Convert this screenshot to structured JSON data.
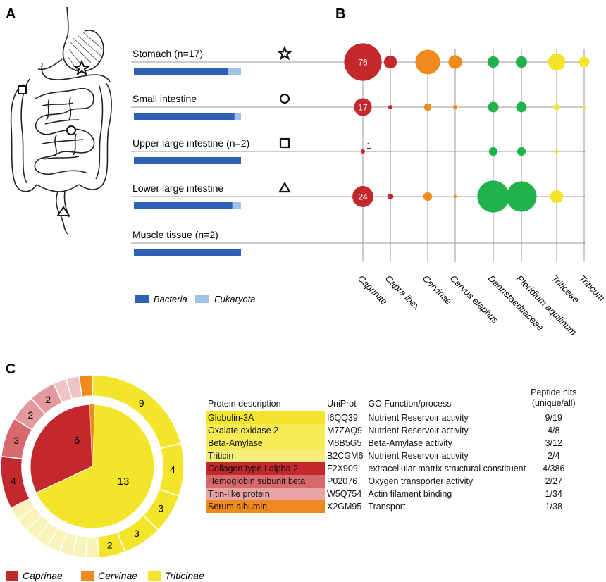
{
  "panels": {
    "a": "A",
    "b": "B",
    "c": "C"
  },
  "panel_a": {
    "samples": [
      {
        "label": "Stomach (n=17)",
        "symbol": "star-icon",
        "bacteria": 0.88,
        "eukaryota": 0.12
      },
      {
        "label": "Small intestine",
        "symbol": "circle-icon",
        "bacteria": 0.94,
        "eukaryota": 0.06
      },
      {
        "label": "Upper large intestine (n=2)",
        "symbol": "square-icon",
        "bacteria": 1.0,
        "eukaryota": 0.0
      },
      {
        "label": "Lower large intestine",
        "symbol": "triangle-icon",
        "bacteria": 0.92,
        "eukaryota": 0.08
      },
      {
        "label": "Muscle tissue (n=2)",
        "symbol": "",
        "bacteria": 1.0,
        "eukaryota": 0.0
      }
    ],
    "legend": [
      {
        "label": "Bacteria",
        "color": "#2f60b8"
      },
      {
        "label": "Eukaryota",
        "color": "#9dc3e6"
      }
    ]
  },
  "chart_data": [
    {
      "type": "scatter",
      "panel": "B",
      "categories": [
        "Caprinae",
        "Capra ibex",
        "Cervinae",
        "Cervus elaphus",
        "Dennstaedtiaceae",
        "Pteridium aquilinum",
        "Triticeae",
        "Triticum"
      ],
      "colors": [
        "#c3282c",
        "#c3282c",
        "#ef8a1e",
        "#ef8a1e",
        "#22b24b",
        "#22b24b",
        "#f2e52a",
        "#f2e52a"
      ],
      "rows": [
        "Stomach (n=17)",
        "Small intestine",
        "Upper large intestine (n=2)",
        "Lower large intestine",
        "Muscle tissue (n=2)"
      ],
      "values": [
        [
          76,
          9,
          33,
          10,
          7,
          7,
          16,
          6
        ],
        [
          17,
          1,
          3,
          1,
          6,
          6,
          2,
          0.5
        ],
        [
          1,
          0,
          0,
          0,
          4,
          4,
          0.8,
          0
        ],
        [
          24,
          2,
          4,
          0.5,
          55,
          50,
          9,
          0
        ],
        [
          0,
          0,
          0,
          0,
          0,
          0,
          0,
          0
        ]
      ],
      "data_labels": [
        [
          "76"
        ],
        [
          "17"
        ],
        [
          "1"
        ],
        [
          "24"
        ],
        []
      ]
    },
    {
      "type": "pie",
      "panel": "C",
      "inner": {
        "labels": [
          "6",
          "13"
        ],
        "values": [
          6,
          13
        ],
        "groups": [
          "Caprinae",
          "Triticinae"
        ],
        "colors": [
          "#c3282c",
          "#f2e52a"
        ]
      },
      "outer": [
        {
          "value": 9,
          "label": "9",
          "color": "#f2e52a"
        },
        {
          "value": 4,
          "label": "4",
          "color": "#f2e52a"
        },
        {
          "value": 3,
          "label": "3",
          "color": "#f2e52a"
        },
        {
          "value": 3,
          "label": "3",
          "color": "#f2e52a"
        },
        {
          "value": 2,
          "label": "2",
          "color": "#f2e52a"
        },
        {
          "value": 1,
          "label": "",
          "color": "#f8f3b8"
        },
        {
          "value": 1,
          "label": "",
          "color": "#f8f3b8"
        },
        {
          "value": 1,
          "label": "",
          "color": "#f8f3b8"
        },
        {
          "value": 1,
          "label": "",
          "color": "#f8f3b8"
        },
        {
          "value": 1,
          "label": "",
          "color": "#f8f3b8"
        },
        {
          "value": 1,
          "label": "",
          "color": "#f8f3b8"
        },
        {
          "value": 1,
          "label": "",
          "color": "#f8f3b8"
        },
        {
          "value": 1,
          "label": "",
          "color": "#f8f3b8"
        },
        {
          "value": 4,
          "label": "4",
          "color": "#c3282c"
        },
        {
          "value": 3,
          "label": "3",
          "color": "#d86a6d"
        },
        {
          "value": 2,
          "label": "2",
          "color": "#e39a9c"
        },
        {
          "value": 2,
          "label": "2",
          "color": "#e39a9c"
        },
        {
          "value": 1,
          "label": "",
          "color": "#efc4c5"
        },
        {
          "value": 1,
          "label": "",
          "color": "#efc4c5"
        },
        {
          "value": 1,
          "label": "",
          "color": "#ef8a1e"
        }
      ],
      "legend": [
        {
          "label": "Caprinae",
          "color": "#c3282c"
        },
        {
          "label": "Cervinae",
          "color": "#ef8a1e"
        },
        {
          "label": "Triticinae",
          "color": "#f2e52a"
        }
      ]
    }
  ],
  "protein_table": {
    "headers": [
      "Protein description",
      "UniProt",
      "GO Function/process",
      "Peptide hits",
      "(unique/all)"
    ],
    "rows": [
      {
        "desc": "Globulin-3A",
        "uniprot": "I6QQ39",
        "go": "Nutrient Reservoir activity",
        "hits": "9/19",
        "color": "#f2e52a"
      },
      {
        "desc": "Oxalate oxidase 2",
        "uniprot": "M7ZAQ9",
        "go": "Nutrient Reservoir activity",
        "hits": "4/8",
        "color": "#f4eb55"
      },
      {
        "desc": "Beta-Amylase",
        "uniprot": "M8B5G5",
        "go": "Beta-Amylase activity",
        "hits": "3/12",
        "color": "#f4eb55"
      },
      {
        "desc": "Triticin",
        "uniprot": "B2CGM6",
        "go": "Nutrient Reservoir activity",
        "hits": "2/4",
        "color": "#f6ee7a"
      },
      {
        "desc": "Collagen type I alpha 2",
        "uniprot": "F2X909",
        "go": "extracellular matrix structural constituent",
        "hits": "4/386",
        "color": "#c3282c"
      },
      {
        "desc": "Hemoglobin subunit beta",
        "uniprot": "P02076",
        "go": "Oxygen transporter activity",
        "hits": "2/27",
        "color": "#d86a6d"
      },
      {
        "desc": "Titin-like protein",
        "uniprot": "W5Q754",
        "go": "Actin filament binding",
        "hits": "1/34",
        "color": "#e8a3a5"
      },
      {
        "desc": "Serum albumin",
        "uniprot": "X2GM95",
        "go": "Transport",
        "hits": "1/38",
        "color": "#ef8a1e"
      }
    ]
  }
}
